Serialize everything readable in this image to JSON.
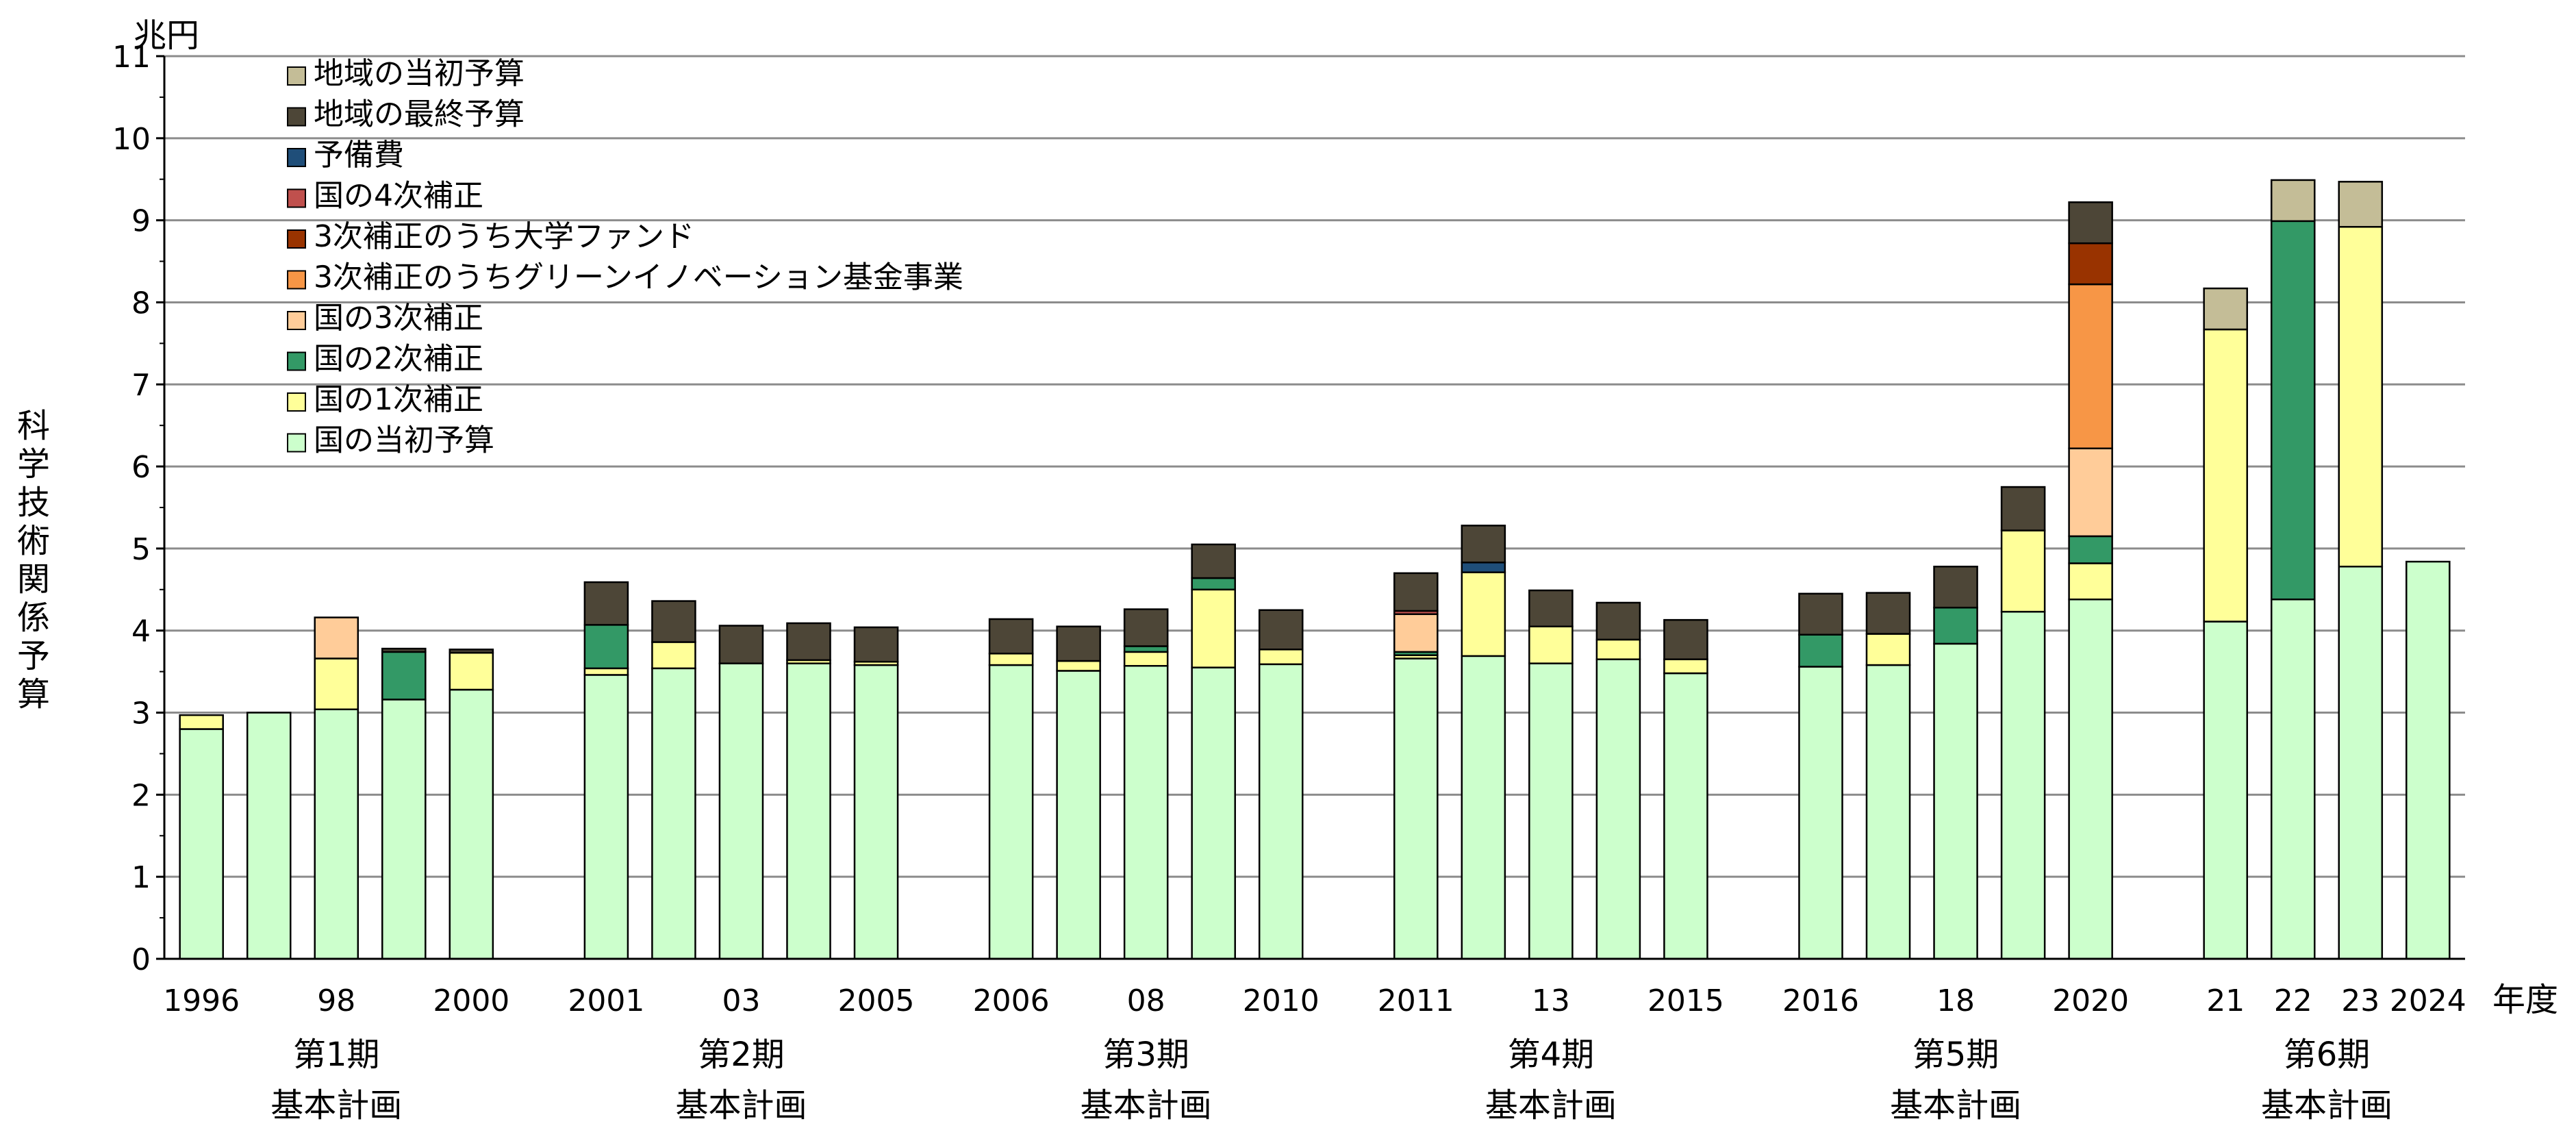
{
  "chart_data": {
    "type": "bar",
    "stacked": true,
    "title": "",
    "ylabel": "科学技術関係予算",
    "yunit": "兆円",
    "xunit": "年度",
    "ylim": [
      0,
      11
    ],
    "yticks": [
      0,
      1,
      2,
      3,
      4,
      5,
      6,
      7,
      8,
      9,
      10,
      11
    ],
    "grid": true,
    "legend_position": "top-left",
    "colors": {
      "国の当初予算": "#ccffcc",
      "国の1次補正": "#ffff99",
      "国の2次補正": "#339966",
      "国の3次補正": "#ffcc99",
      "3次補正のうちグリーンイノベーション基金事業": "#f79646",
      "3次補正のうち大学ファンド": "#993300",
      "国の4次補正": "#c0504d",
      "予備費": "#1f4e79",
      "地域の最終予算": "#4d4637",
      "地域の当初予算": "#c4bd97"
    },
    "legend": [
      "地域の当初予算",
      "地域の最終予算",
      "予備費",
      "国の4次補正",
      "3次補正のうち大学ファンド",
      "3次補正のうちグリーンイノベーション基金事業",
      "国の3次補正",
      "国の2次補正",
      "国の1次補正",
      "国の当初予算"
    ],
    "groups": [
      {
        "period": "第1期",
        "plan": "基本計画",
        "bars": [
          {
            "year": 1996,
            "label": "1996",
            "segments": [
              {
                "series": "国の当初予算",
                "value": 2.8
              },
              {
                "series": "国の1次補正",
                "value": 0.17
              }
            ]
          },
          {
            "year": 1997,
            "label": "",
            "segments": [
              {
                "series": "国の当初予算",
                "value": 3.0
              }
            ]
          },
          {
            "year": 1998,
            "label": "98",
            "segments": [
              {
                "series": "国の当初予算",
                "value": 3.04
              },
              {
                "series": "国の1次補正",
                "value": 0.62
              },
              {
                "series": "国の3次補正",
                "value": 0.5
              }
            ]
          },
          {
            "year": 1999,
            "label": "",
            "segments": [
              {
                "series": "国の当初予算",
                "value": 3.16
              },
              {
                "series": "国の2次補正",
                "value": 0.58
              },
              {
                "series": "地域の最終予算",
                "value": 0.04
              }
            ]
          },
          {
            "year": 2000,
            "label": "2000",
            "segments": [
              {
                "series": "国の当初予算",
                "value": 3.28
              },
              {
                "series": "国の1次補正",
                "value": 0.45
              },
              {
                "series": "地域の最終予算",
                "value": 0.04
              }
            ]
          }
        ]
      },
      {
        "period": "第2期",
        "plan": "基本計画",
        "bars": [
          {
            "year": 2001,
            "label": "2001",
            "segments": [
              {
                "series": "国の当初予算",
                "value": 3.46
              },
              {
                "series": "国の1次補正",
                "value": 0.08
              },
              {
                "series": "国の2次補正",
                "value": 0.53
              },
              {
                "series": "地域の最終予算",
                "value": 0.52
              }
            ]
          },
          {
            "year": 2002,
            "label": "",
            "segments": [
              {
                "series": "国の当初予算",
                "value": 3.54
              },
              {
                "series": "国の1次補正",
                "value": 0.32
              },
              {
                "series": "地域の最終予算",
                "value": 0.5
              }
            ]
          },
          {
            "year": 2003,
            "label": "03",
            "segments": [
              {
                "series": "国の当初予算",
                "value": 3.6
              },
              {
                "series": "地域の最終予算",
                "value": 0.46
              }
            ]
          },
          {
            "year": 2004,
            "label": "",
            "segments": [
              {
                "series": "国の当初予算",
                "value": 3.6
              },
              {
                "series": "国の1次補正",
                "value": 0.04
              },
              {
                "series": "地域の最終予算",
                "value": 0.45
              }
            ]
          },
          {
            "year": 2005,
            "label": "2005",
            "segments": [
              {
                "series": "国の当初予算",
                "value": 3.58
              },
              {
                "series": "国の1次補正",
                "value": 0.04
              },
              {
                "series": "地域の最終予算",
                "value": 0.42
              }
            ]
          }
        ]
      },
      {
        "period": "第3期",
        "plan": "基本計画",
        "bars": [
          {
            "year": 2006,
            "label": "2006",
            "segments": [
              {
                "series": "国の当初予算",
                "value": 3.58
              },
              {
                "series": "国の1次補正",
                "value": 0.14
              },
              {
                "series": "地域の最終予算",
                "value": 0.42
              }
            ]
          },
          {
            "year": 2007,
            "label": "",
            "segments": [
              {
                "series": "国の当初予算",
                "value": 3.51
              },
              {
                "series": "国の1次補正",
                "value": 0.12
              },
              {
                "series": "地域の最終予算",
                "value": 0.42
              }
            ]
          },
          {
            "year": 2008,
            "label": "08",
            "segments": [
              {
                "series": "国の当初予算",
                "value": 3.57
              },
              {
                "series": "国の1次補正",
                "value": 0.17
              },
              {
                "series": "国の2次補正",
                "value": 0.07
              },
              {
                "series": "地域の最終予算",
                "value": 0.45
              }
            ]
          },
          {
            "year": 2009,
            "label": "",
            "segments": [
              {
                "series": "国の当初予算",
                "value": 3.55
              },
              {
                "series": "国の1次補正",
                "value": 0.95
              },
              {
                "series": "国の2次補正",
                "value": 0.14
              },
              {
                "series": "地域の最終予算",
                "value": 0.41
              }
            ]
          },
          {
            "year": 2010,
            "label": "2010",
            "segments": [
              {
                "series": "国の当初予算",
                "value": 3.59
              },
              {
                "series": "国の1次補正",
                "value": 0.18
              },
              {
                "series": "地域の最終予算",
                "value": 0.48
              }
            ]
          }
        ]
      },
      {
        "period": "第4期",
        "plan": "基本計画",
        "bars": [
          {
            "year": 2011,
            "label": "2011",
            "segments": [
              {
                "series": "国の当初予算",
                "value": 3.66
              },
              {
                "series": "国の1次補正",
                "value": 0.04
              },
              {
                "series": "国の2次補正",
                "value": 0.04
              },
              {
                "series": "国の3次補正",
                "value": 0.46
              },
              {
                "series": "国の4次補正",
                "value": 0.04
              },
              {
                "series": "地域の最終予算",
                "value": 0.46
              }
            ]
          },
          {
            "year": 2012,
            "label": "",
            "segments": [
              {
                "series": "国の当初予算",
                "value": 3.69
              },
              {
                "series": "国の1次補正",
                "value": 1.02
              },
              {
                "series": "予備費",
                "value": 0.12
              },
              {
                "series": "地域の最終予算",
                "value": 0.45
              }
            ]
          },
          {
            "year": 2013,
            "label": "13",
            "segments": [
              {
                "series": "国の当初予算",
                "value": 3.6
              },
              {
                "series": "国の1次補正",
                "value": 0.45
              },
              {
                "series": "地域の最終予算",
                "value": 0.44
              }
            ]
          },
          {
            "year": 2014,
            "label": "",
            "segments": [
              {
                "series": "国の当初予算",
                "value": 3.65
              },
              {
                "series": "国の1次補正",
                "value": 0.24
              },
              {
                "series": "地域の最終予算",
                "value": 0.45
              }
            ]
          },
          {
            "year": 2015,
            "label": "2015",
            "segments": [
              {
                "series": "国の当初予算",
                "value": 3.48
              },
              {
                "series": "国の1次補正",
                "value": 0.17
              },
              {
                "series": "地域の最終予算",
                "value": 0.48
              }
            ]
          }
        ]
      },
      {
        "period": "第5期",
        "plan": "基本計画",
        "bars": [
          {
            "year": 2016,
            "label": "2016",
            "segments": [
              {
                "series": "国の当初予算",
                "value": 3.56
              },
              {
                "series": "国の2次補正",
                "value": 0.39
              },
              {
                "series": "地域の最終予算",
                "value": 0.5
              }
            ]
          },
          {
            "year": 2017,
            "label": "",
            "segments": [
              {
                "series": "国の当初予算",
                "value": 3.58
              },
              {
                "series": "国の1次補正",
                "value": 0.38
              },
              {
                "series": "地域の最終予算",
                "value": 0.5
              }
            ]
          },
          {
            "year": 2018,
            "label": "18",
            "segments": [
              {
                "series": "国の当初予算",
                "value": 3.84
              },
              {
                "series": "国の2次補正",
                "value": 0.44
              },
              {
                "series": "地域の最終予算",
                "value": 0.5
              }
            ]
          },
          {
            "year": 2019,
            "label": "",
            "segments": [
              {
                "series": "国の当初予算",
                "value": 4.23
              },
              {
                "series": "国の1次補正",
                "value": 0.99
              },
              {
                "series": "地域の最終予算",
                "value": 0.53
              }
            ]
          },
          {
            "year": 2020,
            "label": "2020",
            "segments": [
              {
                "series": "国の当初予算",
                "value": 4.38
              },
              {
                "series": "国の1次補正",
                "value": 0.44
              },
              {
                "series": "国の2次補正",
                "value": 0.33
              },
              {
                "series": "国の3次補正",
                "value": 1.07
              },
              {
                "series": "3次補正のうちグリーンイノベーション基金事業",
                "value": 2.0
              },
              {
                "series": "3次補正のうち大学ファンド",
                "value": 0.5
              },
              {
                "series": "地域の最終予算",
                "value": 0.5
              }
            ]
          }
        ]
      },
      {
        "period": "第6期",
        "plan": "基本計画",
        "bars": [
          {
            "year": 2021,
            "label": "21",
            "segments": [
              {
                "series": "国の当初予算",
                "value": 4.11
              },
              {
                "series": "国の1次補正",
                "value": 3.56
              },
              {
                "series": "地域の当初予算",
                "value": 0.5
              }
            ]
          },
          {
            "year": 2022,
            "label": "22",
            "segments": [
              {
                "series": "国の当初予算",
                "value": 4.38
              },
              {
                "series": "国の2次補正",
                "value": 4.61
              },
              {
                "series": "地域の当初予算",
                "value": 0.5
              }
            ]
          },
          {
            "year": 2023,
            "label": "23",
            "segments": [
              {
                "series": "国の当初予算",
                "value": 4.78
              },
              {
                "series": "国の1次補正",
                "value": 4.14
              },
              {
                "series": "地域の当初予算",
                "value": 0.55
              }
            ]
          },
          {
            "year": 2024,
            "label": "2024",
            "segments": [
              {
                "series": "国の当初予算",
                "value": 4.84
              }
            ]
          }
        ]
      }
    ]
  }
}
